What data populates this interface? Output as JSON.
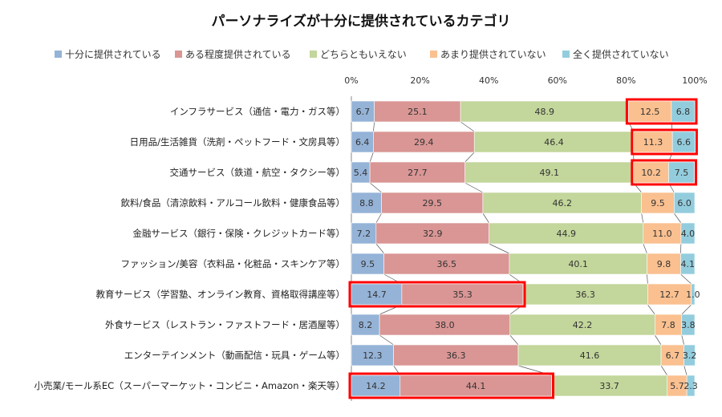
{
  "chart_data": {
    "type": "bar",
    "orientation": "horizontal",
    "stacked": true,
    "percent": true,
    "title": "パーソナライズが十分に提供されているカテゴリ",
    "xlim": [
      0,
      100
    ],
    "x_ticks": [
      "0%",
      "20%",
      "40%",
      "60%",
      "80%",
      "100%"
    ],
    "legend_position": "top",
    "categories": [
      "インフラサービス（通信・電力・ガス等）",
      "日用品/生活雑貨（洗剤・ペットフード・文房具等）",
      "交通サービス（鉄道・航空・タクシー等）",
      "飲料/食品（清涼飲料・アルコール飲料・健康食品等）",
      "金融サービス（銀行・保険・クレジットカード等）",
      "ファッション/美容（衣料品・化粧品・スキンケア等）",
      "教育サービス（学習塾、オンライン教育、資格取得講座等）",
      "外食サービス（レストラン・ファストフード・居酒屋等）",
      "エンターテインメント（動画配信・玩具・ゲーム等）",
      "小売業/モール系EC（スーパーマーケット・コンビニ・Amazon・楽天等）"
    ],
    "series": [
      {
        "name": "十分に提供されている",
        "color": "#95b3d7",
        "values": [
          6.7,
          6.4,
          5.4,
          8.8,
          7.2,
          9.5,
          14.7,
          8.2,
          12.3,
          14.2
        ],
        "labels": [
          "6.7",
          "6.4",
          "5.4",
          "8.8",
          "7.2",
          "9.5",
          "14.7",
          "8.2",
          "12.3",
          "14.2"
        ]
      },
      {
        "name": "ある程度提供されている",
        "color": "#d99694",
        "values": [
          25.1,
          29.4,
          27.7,
          29.5,
          32.9,
          36.5,
          35.3,
          38.0,
          36.3,
          44.1
        ],
        "labels": [
          "25.1",
          "29.4",
          "27.7",
          "29.5",
          "32.9",
          "36.5",
          "35.3",
          "38.0",
          "36.3",
          "44.1"
        ]
      },
      {
        "name": "どちらともいえない",
        "color": "#c3d69b",
        "values": [
          48.9,
          46.4,
          49.1,
          46.2,
          44.9,
          40.1,
          36.3,
          42.2,
          41.6,
          33.7
        ],
        "labels": [
          "48.9",
          "46.4",
          "49.1",
          "46.2",
          "44.9",
          "40.1",
          "36.3",
          "42.2",
          "41.6",
          "33.7"
        ]
      },
      {
        "name": "あまり提供されていない",
        "color": "#fac090",
        "values": [
          12.5,
          11.3,
          10.2,
          9.5,
          11.0,
          9.8,
          12.7,
          7.8,
          6.7,
          5.7
        ],
        "labels": [
          "12.5",
          "11.3",
          "10.2",
          "9.5",
          "11.0",
          "9.8",
          "12.7",
          "7.8",
          "6.7",
          "5.7"
        ]
      },
      {
        "name": "全く提供されていない",
        "color": "#93cddd",
        "values": [
          6.8,
          6.6,
          7.5,
          6.0,
          4.0,
          4.1,
          1.0,
          3.8,
          3.2,
          2.3
        ],
        "labels": [
          "6.8",
          "6.6",
          "7.5",
          "6.0",
          "4.0",
          "4.1",
          "1.0",
          "3.8",
          "3.2",
          "2.3"
        ]
      }
    ],
    "highlights": [
      {
        "category_index": 0,
        "series_indices": [
          3,
          4
        ],
        "color": "#ff0000"
      },
      {
        "category_index": 1,
        "series_indices": [
          3,
          4
        ],
        "color": "#ff0000"
      },
      {
        "category_index": 2,
        "series_indices": [
          3,
          4
        ],
        "color": "#ff0000"
      },
      {
        "category_index": 6,
        "series_indices": [
          0,
          1
        ],
        "color": "#ff0000"
      },
      {
        "category_index": 9,
        "series_indices": [
          0,
          1
        ],
        "color": "#ff0000"
      }
    ]
  }
}
